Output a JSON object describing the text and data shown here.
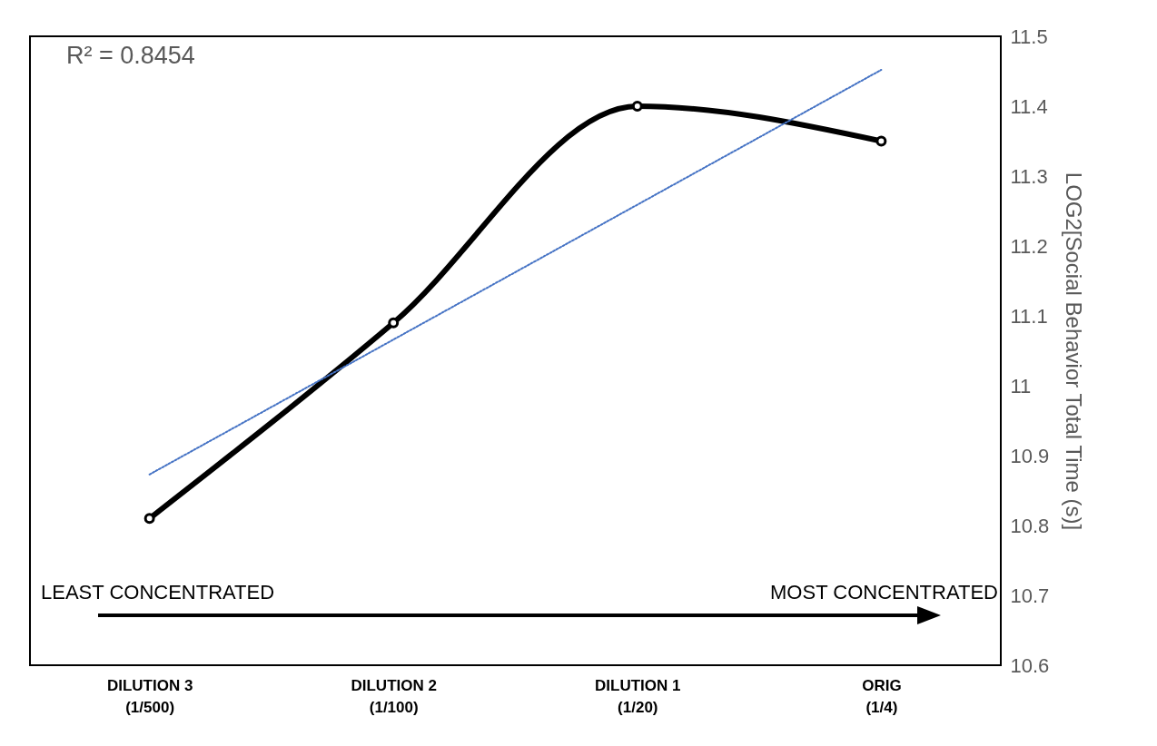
{
  "chart_data": {
    "type": "line",
    "categories": [
      "DILUTION 3\n(1/500)",
      "DILUTION 2\n(1/100)",
      "DILUTION 1\n(1/20)",
      "ORIG\n(1/4)"
    ],
    "series": [
      {
        "color": "#000000",
        "values": [
          10.81,
          11.09,
          11.4,
          11.35
        ],
        "marker": "circle",
        "line_style": "solid"
      },
      {
        "type": "line",
        "color": "#4472c4",
        "x": [
          "DILUTION 3\n(1/500)",
          "ORIG\n(1/4)"
        ],
        "values": [
          10.873,
          11.452
        ],
        "marker": "none",
        "line_style": "dotted"
      }
    ],
    "ylabel": "LOG2[Social Behavior Total Time (s)]",
    "ylim": [
      10.6,
      11.5
    ],
    "yticks": [
      10.6,
      10.7,
      10.8,
      10.9,
      11,
      11.1,
      11.2,
      11.3,
      11.4,
      11.5
    ],
    "annotations": [
      "R² = 0.8454",
      "LEAST CONCENTRATED",
      "MOST CONCENTRATED"
    ]
  }
}
